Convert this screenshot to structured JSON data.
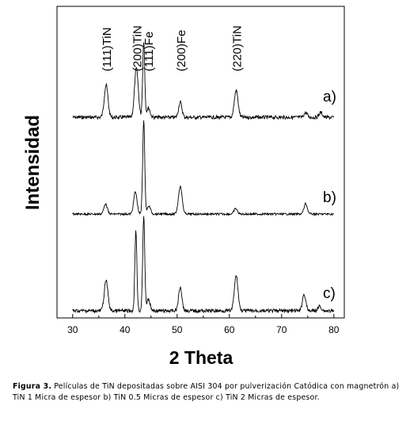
{
  "chart_data": {
    "type": "line",
    "xlabel": "2 Theta",
    "ylabel": "Intensidad",
    "xlim": [
      27,
      82
    ],
    "xticks": [
      30,
      40,
      50,
      60,
      70,
      80
    ],
    "y_ticks_shown": false,
    "grid": false,
    "series": [
      {
        "name": "a)",
        "peaks": [
          {
            "x": 36.4,
            "height": 41
          },
          {
            "x": 42.2,
            "height": 62
          },
          {
            "x": 43.6,
            "height": 96
          },
          {
            "x": 44.5,
            "height": 12
          },
          {
            "x": 50.6,
            "height": 19
          },
          {
            "x": 61.3,
            "height": 34
          },
          {
            "x": 74.6,
            "height": 6
          },
          {
            "x": 77.5,
            "height": 6
          }
        ]
      },
      {
        "name": "b)",
        "peaks": [
          {
            "x": 36.3,
            "height": 13
          },
          {
            "x": 42.0,
            "height": 28
          },
          {
            "x": 43.6,
            "height": 118
          },
          {
            "x": 44.6,
            "height": 10
          },
          {
            "x": 50.6,
            "height": 35
          },
          {
            "x": 61.2,
            "height": 7
          },
          {
            "x": 74.6,
            "height": 13
          }
        ]
      },
      {
        "name": "c)",
        "peaks": [
          {
            "x": 36.4,
            "height": 38
          },
          {
            "x": 42.1,
            "height": 100
          },
          {
            "x": 43.6,
            "height": 118
          },
          {
            "x": 44.5,
            "height": 14
          },
          {
            "x": 50.6,
            "height": 30
          },
          {
            "x": 61.3,
            "height": 44
          },
          {
            "x": 74.3,
            "height": 21
          },
          {
            "x": 77.3,
            "height": 6
          }
        ]
      }
    ],
    "annotations": [
      {
        "x": 36.4,
        "text": "(111)TiN"
      },
      {
        "x": 42.2,
        "text": "(200)TiN"
      },
      {
        "x": 44.4,
        "text": "(111)Fe"
      },
      {
        "x": 50.6,
        "text": "(200)Fe"
      },
      {
        "x": 61.3,
        "text": "(220)TiN"
      }
    ]
  },
  "caption": {
    "label": "Figura 3.",
    "text": " Películas de TiN depositadas sobre AISI 304 por pulverización Catódica con magnetrón a) TiN 1 Micra de espesor b) TiN 0.5 Micras de espesor c) TiN 2 Micras de espesor."
  }
}
